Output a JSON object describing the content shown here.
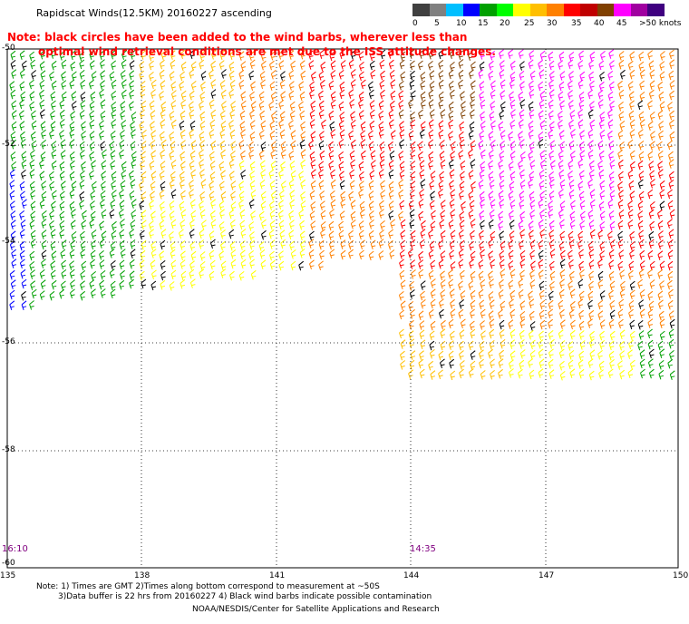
{
  "title": "Rapidscat Winds(12.5KM) 20160227 ascending",
  "note": {
    "line1": "Note: black circles have been added to the wind barbs, wherever less than",
    "line2": "optimal wind retrieval conditions are met due to the ISS attitude changes."
  },
  "legend": {
    "colors": [
      "#404040",
      "#808080",
      "#00bfff",
      "#0000ff",
      "#00a000",
      "#00ff00",
      "#ffff00",
      "#ffbf00",
      "#ff8000",
      "#ff0000",
      "#c00000",
      "#804000",
      "#ff00ff",
      "#a000a0",
      "#400080"
    ],
    "labels": [
      "0",
      "5",
      "10",
      "15",
      "20",
      "25",
      "30",
      "35",
      "40",
      "45",
      ">50 knots"
    ]
  },
  "axes": {
    "lon_labels": [
      "135",
      "138",
      "141",
      "144",
      "147",
      "150"
    ],
    "lat_labels": [
      "-50",
      "-52",
      "-54",
      "-56",
      "-58",
      "-60"
    ]
  },
  "times": {
    "left": "16:10",
    "right": "14:35"
  },
  "footer": {
    "line1": "Note: 1) Times are GMT 2)Times along bottom correspond to measurement at ~50S",
    "line2": "3)Data buffer is 22 hrs from 20160227 4) Black wind barbs indicate possible contamination",
    "line3": "NOAA/NESDIS/Center for Satellite Applications and Research"
  }
}
